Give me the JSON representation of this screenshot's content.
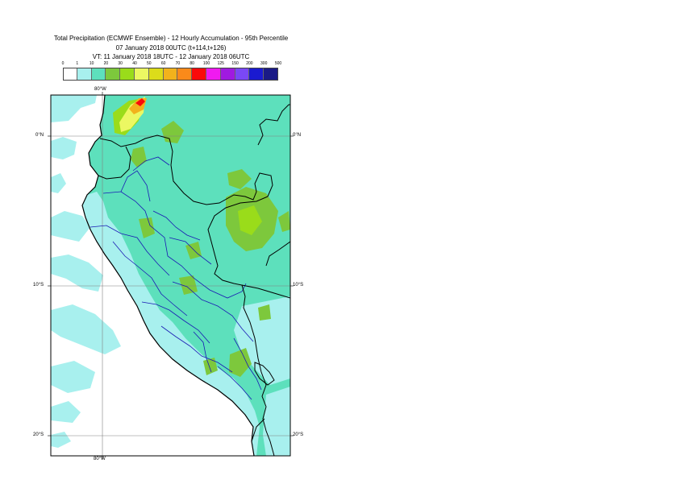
{
  "title": {
    "line1": "Total Precipitation (ECMWF Ensemble) - 12 Hourly Accumulation - 95th Percentile",
    "line2": "07 January 2018 00UTC (t+114,t+126)",
    "line3": "VT: 11 January 2018 18UTC - 12 January 2018 06UTC"
  },
  "legend": {
    "labels": [
      "0",
      "1",
      "10",
      "20",
      "30",
      "40",
      "50",
      "60",
      "70",
      "80",
      "100",
      "125",
      "150",
      "200",
      "300",
      "500"
    ],
    "colors": [
      "#ffffff",
      "#a8f0ee",
      "#5de0bc",
      "#7dc83c",
      "#9adc1a",
      "#ecf862",
      "#dcdc1a",
      "#f2b21c",
      "#fa8a1a",
      "#fa0a0a",
      "#f01af0",
      "#a01ae0",
      "#7a48f6",
      "#1a1ad0",
      "#1a1a86"
    ]
  },
  "map": {
    "top_lon_label": "80°W",
    "bottom_lon_label": "80°W",
    "lat_labels_left": [
      "0°N",
      "10°S",
      "20°S"
    ],
    "lat_labels_right": [
      "0°N",
      "10°S",
      "20°S"
    ],
    "colors": {
      "ocean": "#ffffff",
      "light": "#a8f0ee",
      "medium": "#5de0bc",
      "green": "#7dc83c",
      "lime": "#9adc1a",
      "yellow": "#ecf862",
      "orange": "#f2b21c",
      "red": "#fa0a0a",
      "coast": "#000000",
      "regions": "#1a1ab4",
      "grid": "#808080"
    }
  }
}
